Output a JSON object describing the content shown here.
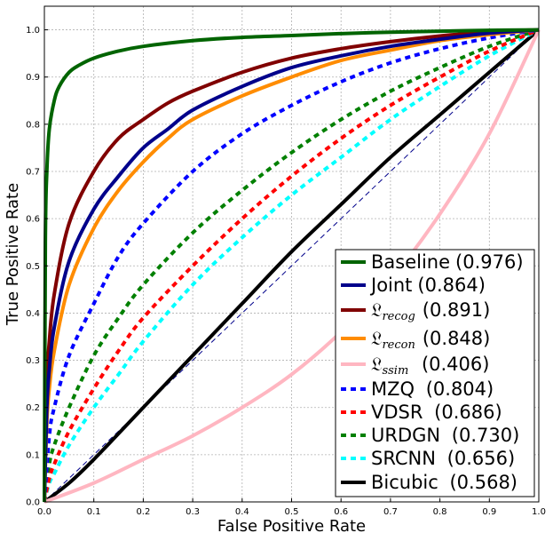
{
  "chart_data": {
    "type": "line",
    "title": "",
    "xlabel": "False Positive Rate",
    "ylabel": "True Positive Rate",
    "xlim": [
      0.0,
      1.0
    ],
    "ylim": [
      0.0,
      1.05
    ],
    "grid": true,
    "legend_position": "bottom-right",
    "x_ticks": [
      "0.0",
      "0.1",
      "0.2",
      "0.3",
      "0.4",
      "0.5",
      "0.6",
      "0.7",
      "0.8",
      "0.9",
      "1.0"
    ],
    "y_ticks": [
      "0.0",
      "0.1",
      "0.2",
      "0.3",
      "0.4",
      "0.5",
      "0.6",
      "0.7",
      "0.8",
      "0.9",
      "1.0"
    ],
    "chance_line": {
      "x": [
        0,
        1
      ],
      "y": [
        0,
        1
      ],
      "color": "#00008b",
      "style": "dashed"
    },
    "series": [
      {
        "name": "Baseline",
        "score": "(0.976)",
        "color": "#006400",
        "style": "solid",
        "x": [
          0,
          0.002,
          0.005,
          0.01,
          0.02,
          0.03,
          0.05,
          0.07,
          0.1,
          0.15,
          0.2,
          0.3,
          0.4,
          0.5,
          0.6,
          0.7,
          0.8,
          0.9,
          1.0
        ],
        "y": [
          0,
          0.55,
          0.7,
          0.79,
          0.85,
          0.88,
          0.91,
          0.925,
          0.94,
          0.955,
          0.965,
          0.977,
          0.984,
          0.988,
          0.992,
          0.995,
          0.997,
          0.999,
          1.0
        ]
      },
      {
        "name": "Joint",
        "score": "(0.864)",
        "color": "#00008b",
        "style": "solid",
        "x": [
          0,
          0.005,
          0.01,
          0.02,
          0.05,
          0.1,
          0.15,
          0.2,
          0.25,
          0.3,
          0.4,
          0.5,
          0.6,
          0.7,
          0.8,
          0.9,
          1.0
        ],
        "y": [
          0,
          0.2,
          0.28,
          0.37,
          0.51,
          0.62,
          0.69,
          0.75,
          0.79,
          0.83,
          0.88,
          0.92,
          0.945,
          0.965,
          0.98,
          0.993,
          1.0
        ]
      },
      {
        "name": "𝔏",
        "sub": "recog",
        "score": "(0.891)",
        "color": "#800000",
        "style": "solid",
        "x": [
          0,
          0.005,
          0.01,
          0.02,
          0.05,
          0.1,
          0.15,
          0.2,
          0.25,
          0.3,
          0.4,
          0.5,
          0.6,
          0.7,
          0.8,
          0.9,
          1.0
        ],
        "y": [
          0,
          0.25,
          0.34,
          0.44,
          0.59,
          0.7,
          0.77,
          0.81,
          0.845,
          0.87,
          0.91,
          0.94,
          0.96,
          0.975,
          0.987,
          0.996,
          1.0
        ]
      },
      {
        "name": "𝔏",
        "sub": "recon",
        "score": "(0.848)",
        "color": "#ff8c00",
        "style": "solid",
        "x": [
          0,
          0.005,
          0.01,
          0.02,
          0.05,
          0.1,
          0.15,
          0.2,
          0.25,
          0.3,
          0.4,
          0.5,
          0.6,
          0.7,
          0.8,
          0.9,
          1.0
        ],
        "y": [
          0,
          0.17,
          0.24,
          0.32,
          0.46,
          0.58,
          0.66,
          0.72,
          0.77,
          0.81,
          0.86,
          0.9,
          0.935,
          0.957,
          0.977,
          0.99,
          1.0
        ]
      },
      {
        "name": "𝔏",
        "sub": "ssim",
        "score": " (0.406)",
        "color": "#ffb6c1",
        "style": "solid",
        "x": [
          0,
          0.1,
          0.2,
          0.3,
          0.4,
          0.5,
          0.6,
          0.7,
          0.8,
          0.9,
          1.0
        ],
        "y": [
          0,
          0.04,
          0.09,
          0.14,
          0.2,
          0.27,
          0.36,
          0.47,
          0.61,
          0.78,
          1.0
        ]
      },
      {
        "name": "MZQ",
        "score": " (0.804)",
        "color": "#0000ff",
        "style": "dashed",
        "x": [
          0,
          0.01,
          0.02,
          0.05,
          0.1,
          0.15,
          0.2,
          0.3,
          0.4,
          0.5,
          0.6,
          0.7,
          0.8,
          0.9,
          1.0
        ],
        "y": [
          0,
          0.14,
          0.2,
          0.31,
          0.42,
          0.52,
          0.59,
          0.7,
          0.78,
          0.84,
          0.89,
          0.93,
          0.96,
          0.983,
          1.0
        ]
      },
      {
        "name": "VDSR",
        "score": " (0.686)",
        "color": "#ff0000",
        "style": "dashed",
        "x": [
          0,
          0.01,
          0.02,
          0.05,
          0.1,
          0.15,
          0.2,
          0.3,
          0.4,
          0.5,
          0.6,
          0.7,
          0.8,
          0.9,
          1.0
        ],
        "y": [
          0,
          0.05,
          0.08,
          0.15,
          0.24,
          0.32,
          0.39,
          0.5,
          0.6,
          0.69,
          0.77,
          0.84,
          0.9,
          0.955,
          1.0
        ]
      },
      {
        "name": "URDGN",
        "score": " (0.730)",
        "color": "#008000",
        "style": "dashed",
        "x": [
          0,
          0.01,
          0.02,
          0.05,
          0.1,
          0.15,
          0.2,
          0.3,
          0.4,
          0.5,
          0.6,
          0.7,
          0.8,
          0.9,
          1.0
        ],
        "y": [
          0,
          0.08,
          0.12,
          0.2,
          0.31,
          0.39,
          0.46,
          0.57,
          0.66,
          0.74,
          0.81,
          0.87,
          0.92,
          0.965,
          1.0
        ]
      },
      {
        "name": "SRCNN",
        "score": " (0.656)",
        "color": "#00ffff",
        "style": "dashed",
        "x": [
          0,
          0.01,
          0.02,
          0.05,
          0.1,
          0.15,
          0.2,
          0.3,
          0.4,
          0.5,
          0.6,
          0.7,
          0.8,
          0.9,
          1.0
        ],
        "y": [
          0,
          0.04,
          0.06,
          0.12,
          0.2,
          0.27,
          0.34,
          0.46,
          0.56,
          0.65,
          0.73,
          0.81,
          0.88,
          0.945,
          1.0
        ]
      },
      {
        "name": "Bicubic",
        "score": " (0.568)",
        "color": "#000000",
        "style": "solid",
        "x": [
          0,
          0.05,
          0.1,
          0.2,
          0.3,
          0.4,
          0.5,
          0.6,
          0.7,
          0.8,
          0.9,
          1.0
        ],
        "y": [
          0,
          0.04,
          0.09,
          0.2,
          0.31,
          0.42,
          0.53,
          0.63,
          0.73,
          0.82,
          0.91,
          1.0
        ]
      }
    ]
  }
}
